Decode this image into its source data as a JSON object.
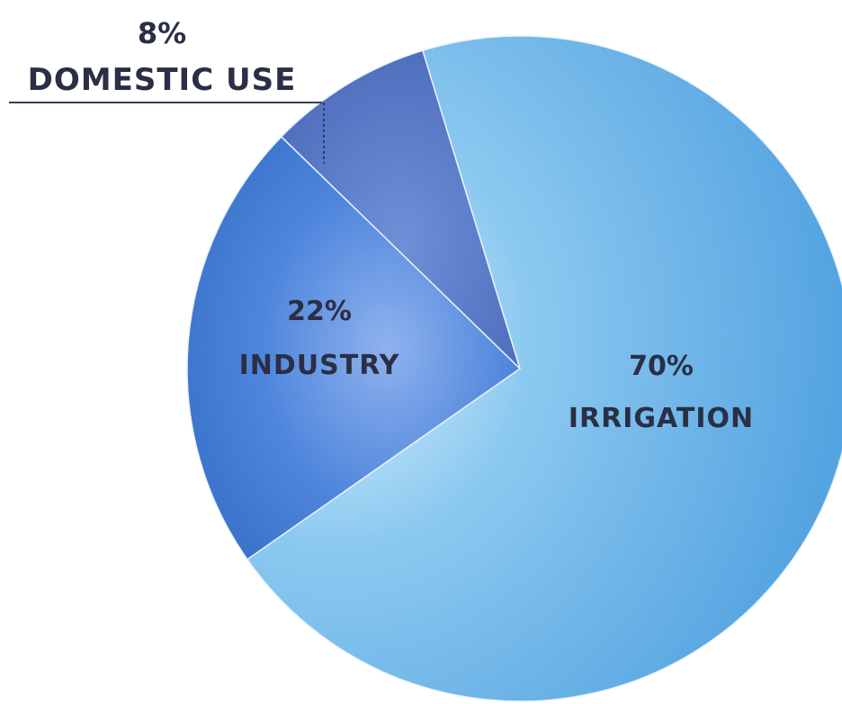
{
  "chart_data": {
    "type": "pie",
    "slices": [
      {
        "label": "IRRIGATION",
        "value": 70,
        "value_label": "70%",
        "color": "#5aaee6"
      },
      {
        "label": "INDUSTRY",
        "value": 22,
        "value_label": "22%",
        "color": "#3f7fd6"
      },
      {
        "label": "DOMESTIC USE",
        "value": 8,
        "value_label": "8%",
        "color": "#4a74c2"
      }
    ]
  }
}
